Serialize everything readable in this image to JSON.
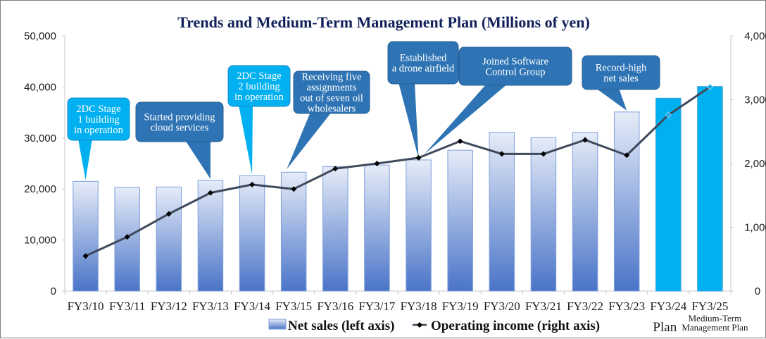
{
  "chart_data": {
    "type": "bar",
    "title": "Trends and Medium-Term Management Plan (Millions of yen)",
    "categories": [
      "FY3/10",
      "FY3/11",
      "FY3/12",
      "FY3/13",
      "FY3/14",
      "FY3/15",
      "FY3/16",
      "FY3/17",
      "FY3/18",
      "FY3/19",
      "FY3/20",
      "FY3/21",
      "FY3/22",
      "FY3/23",
      "FY3/24",
      "FY3/25"
    ],
    "category_sublabels": {
      "FY3/24": "Plan",
      "FY3/25": "Medium-Term Management Plan"
    },
    "series": [
      {
        "name": "Net sales (left axis)",
        "type": "bar",
        "axis": "left",
        "values": [
          21500,
          20300,
          20400,
          21700,
          22600,
          23300,
          24400,
          24700,
          25700,
          27600,
          31100,
          30100,
          31100,
          35100,
          37800,
          40100
        ],
        "plan_flags": [
          false,
          false,
          false,
          false,
          false,
          false,
          false,
          false,
          false,
          false,
          false,
          false,
          false,
          false,
          true,
          true
        ]
      },
      {
        "name": "Operating income (right axis)",
        "type": "line",
        "axis": "right",
        "values": [
          550,
          850,
          1210,
          1540,
          1670,
          1600,
          1920,
          2000,
          2090,
          2350,
          2150,
          2150,
          2370,
          2130,
          2760,
          3200
        ]
      }
    ],
    "left_axis": {
      "ylim": [
        0,
        50000
      ],
      "ticks": [
        "0",
        "10,000",
        "20,000",
        "30,000",
        "40,000",
        "50,000"
      ],
      "tick_values": [
        0,
        10000,
        20000,
        30000,
        40000,
        50000
      ]
    },
    "right_axis": {
      "ylim": [
        0,
        4000
      ],
      "ticks": [
        "0",
        "1,000",
        "2,000",
        "3,000",
        "4,000"
      ],
      "tick_values": [
        0,
        1000,
        2000,
        3000,
        4000
      ]
    },
    "xlabel": "",
    "ylabel": "",
    "grid": false,
    "legend": {
      "placement": "bottom-center",
      "entries": [
        "Net sales (left axis)",
        "Operating income (right axis)"
      ]
    },
    "annotations": [
      {
        "category": "FY3/10",
        "lines": [
          "2DC Stage",
          "1 building",
          "in operation"
        ],
        "style": "light"
      },
      {
        "category": "FY3/13",
        "lines": [
          "Started providing",
          "cloud services"
        ],
        "style": "dark"
      },
      {
        "category": "FY3/14",
        "lines": [
          "2DC Stage",
          "2 building",
          "in operation"
        ],
        "style": "light"
      },
      {
        "category": "FY3/15",
        "lines": [
          "Receiving five",
          "assignments",
          "out of seven oil",
          "wholesalers"
        ],
        "style": "dark"
      },
      {
        "category": "FY3/18",
        "lines": [
          "Established",
          "a drone airfield"
        ],
        "style": "dark"
      },
      {
        "category": "FY3/18",
        "lines": [
          "Joined Software",
          "Control Group"
        ],
        "style": "dark"
      },
      {
        "category": "FY3/23",
        "lines": [
          "Record-high",
          "net sales"
        ],
        "style": "dark"
      }
    ],
    "colors": {
      "bar_top": "#e6ecf8",
      "bar_bottom": "#4a74c8",
      "bar_border": "#7f9fdc",
      "plan_bar": "#00b0f0",
      "line": "#3e4a5c",
      "marker": "#000000",
      "plan_marker": "#18a8e6",
      "callout_dark": "#2e74b5",
      "callout_light": "#00b0f0",
      "title": "#10205a"
    }
  }
}
